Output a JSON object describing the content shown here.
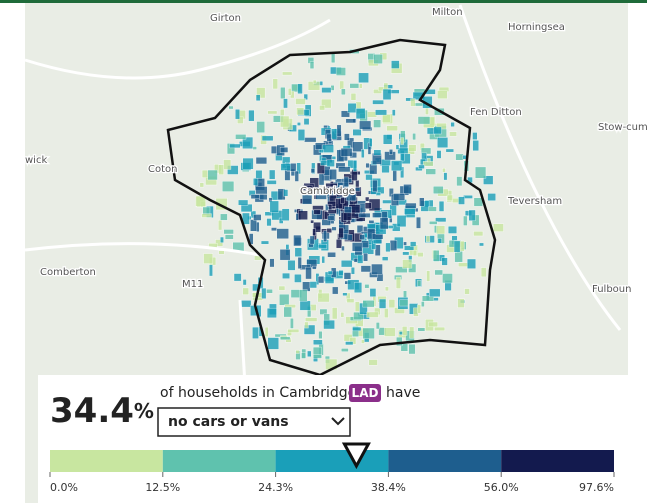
{
  "map": {
    "places": [
      "Girton",
      "Milton",
      "Horningsea",
      "Fen Ditton",
      "Stow-cum",
      "wick",
      "Coton",
      "Cambridge",
      "Teversham",
      "Comberton",
      "M11",
      "Fulboun"
    ]
  },
  "legend": {
    "value": 34.4,
    "unit": "%",
    "lead_text": "of households in Cambridge",
    "area_type": "LAD",
    "trail_text": "have",
    "selected_variable": "no cars or vans",
    "breaks": [
      {
        "value": 0,
        "label": "0.0%"
      },
      {
        "value": 12.5,
        "label": "12.5%"
      },
      {
        "value": 24.3,
        "label": "24.3%"
      },
      {
        "value": 38.4,
        "label": "38.4%"
      },
      {
        "value": 56,
        "label": "56.0%"
      },
      {
        "value": 97.6,
        "label": "97.6%"
      }
    ],
    "colors": [
      "#c8e6a0",
      "#5fc2ae",
      "#1a9fb9",
      "#1e5e8e",
      "#131a4e"
    ]
  }
}
